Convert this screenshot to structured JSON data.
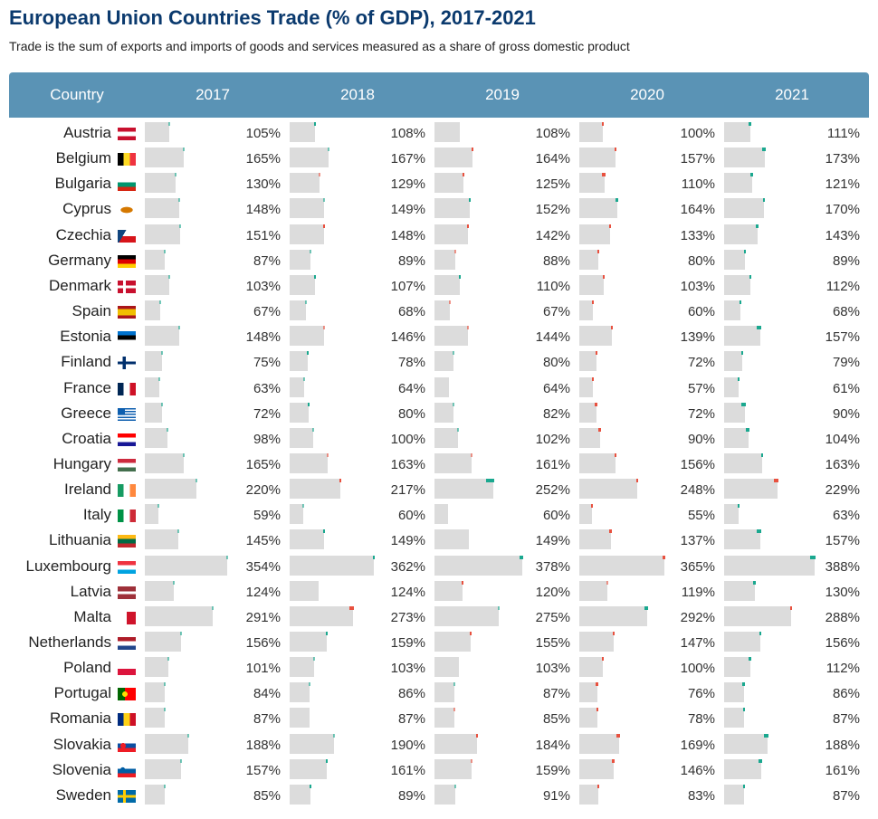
{
  "title": "European Union Countries Trade (% of GDP), 2017-2021",
  "subtitle": "Trade is the sum of exports and imports of goods and services measured as a share of gross domestic product",
  "colors": {
    "header": "#5a93b5",
    "title": "#0b3a6e",
    "bar": "#dcdcdc",
    "increase": "#1aa88f",
    "decrease": "#e8513f"
  },
  "chart_data": {
    "type": "table",
    "title": "European Union Countries Trade (% of GDP), 2017-2021",
    "columns": [
      "Country",
      "2017",
      "2018",
      "2019",
      "2020",
      "2021"
    ],
    "unit": "%",
    "xlim": [
      0,
      388
    ],
    "rows": [
      {
        "country": "Austria",
        "flag": "austria-flag",
        "values": [
          105,
          108,
          108,
          100,
          111
        ]
      },
      {
        "country": "Belgium",
        "flag": "belgium-flag",
        "values": [
          165,
          167,
          164,
          157,
          173
        ]
      },
      {
        "country": "Bulgaria",
        "flag": "bulgaria-flag",
        "values": [
          130,
          129,
          125,
          110,
          121
        ]
      },
      {
        "country": "Cyprus",
        "flag": "cyprus-flag",
        "values": [
          148,
          149,
          152,
          164,
          170
        ]
      },
      {
        "country": "Czechia",
        "flag": "czechia-flag",
        "values": [
          151,
          148,
          142,
          133,
          143
        ]
      },
      {
        "country": "Germany",
        "flag": "germany-flag",
        "values": [
          87,
          89,
          88,
          80,
          89
        ]
      },
      {
        "country": "Denmark",
        "flag": "denmark-flag",
        "values": [
          103,
          107,
          110,
          103,
          112
        ]
      },
      {
        "country": "Spain",
        "flag": "spain-flag",
        "values": [
          67,
          68,
          67,
          60,
          68
        ]
      },
      {
        "country": "Estonia",
        "flag": "estonia-flag",
        "values": [
          148,
          146,
          144,
          139,
          157
        ]
      },
      {
        "country": "Finland",
        "flag": "finland-flag",
        "values": [
          75,
          78,
          80,
          72,
          79
        ]
      },
      {
        "country": "France",
        "flag": "france-flag",
        "values": [
          63,
          64,
          64,
          57,
          61
        ]
      },
      {
        "country": "Greece",
        "flag": "greece-flag",
        "values": [
          72,
          80,
          82,
          72,
          90
        ]
      },
      {
        "country": "Croatia",
        "flag": "croatia-flag",
        "values": [
          98,
          100,
          102,
          90,
          104
        ]
      },
      {
        "country": "Hungary",
        "flag": "hungary-flag",
        "values": [
          165,
          163,
          161,
          156,
          163
        ]
      },
      {
        "country": "Ireland",
        "flag": "ireland-flag",
        "values": [
          220,
          217,
          252,
          248,
          229
        ]
      },
      {
        "country": "Italy",
        "flag": "italy-flag",
        "values": [
          59,
          60,
          60,
          55,
          63
        ]
      },
      {
        "country": "Lithuania",
        "flag": "lithuania-flag",
        "values": [
          145,
          149,
          149,
          137,
          157
        ]
      },
      {
        "country": "Luxembourg",
        "flag": "luxembourg-flag",
        "values": [
          354,
          362,
          378,
          365,
          388
        ]
      },
      {
        "country": "Latvia",
        "flag": "latvia-flag",
        "values": [
          124,
          124,
          120,
          119,
          130
        ]
      },
      {
        "country": "Malta",
        "flag": "malta-flag",
        "values": [
          291,
          273,
          275,
          292,
          288
        ]
      },
      {
        "country": "Netherlands",
        "flag": "netherlands-flag",
        "values": [
          156,
          159,
          155,
          147,
          156
        ]
      },
      {
        "country": "Poland",
        "flag": "poland-flag",
        "values": [
          101,
          103,
          103,
          100,
          112
        ]
      },
      {
        "country": "Portugal",
        "flag": "portugal-flag",
        "values": [
          84,
          86,
          87,
          76,
          86
        ]
      },
      {
        "country": "Romania",
        "flag": "romania-flag",
        "values": [
          87,
          87,
          85,
          78,
          87
        ]
      },
      {
        "country": "Slovakia",
        "flag": "slovakia-flag",
        "values": [
          188,
          190,
          184,
          169,
          188
        ]
      },
      {
        "country": "Slovenia",
        "flag": "slovenia-flag",
        "values": [
          157,
          161,
          159,
          146,
          161
        ]
      },
      {
        "country": "Sweden",
        "flag": "sweden-flag",
        "values": [
          85,
          89,
          91,
          83,
          87
        ]
      }
    ]
  }
}
